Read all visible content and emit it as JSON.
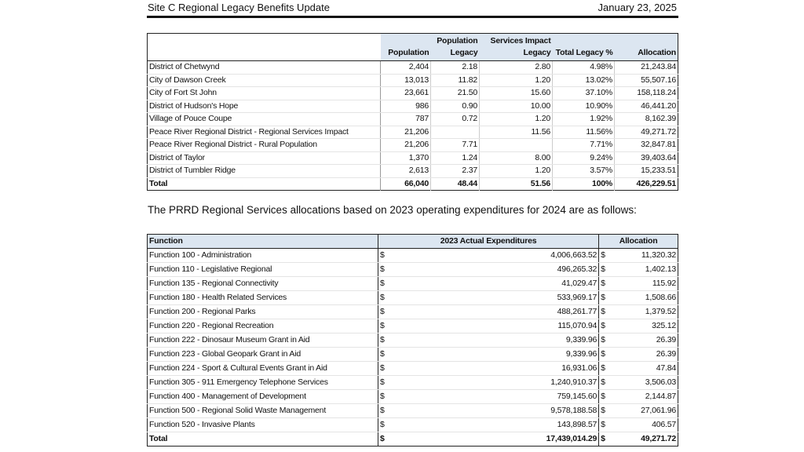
{
  "header": {
    "title": "Site C Regional Legacy Benefits Update",
    "date": "January 23, 2025"
  },
  "legacy_table": {
    "headers": [
      "Population",
      "Population Legacy",
      "Services Impact Legacy",
      "Total Legacy %",
      "Allocation"
    ],
    "rows": [
      [
        "District of Chetwynd",
        "2,404",
        "2.18",
        "2.80",
        "4.98%",
        "21,243.84"
      ],
      [
        "City of Dawson Creek",
        "13,013",
        "11.82",
        "1.20",
        "13.02%",
        "55,507.16"
      ],
      [
        "City of Fort St John",
        "23,661",
        "21.50",
        "15.60",
        "37.10%",
        "158,118.24"
      ],
      [
        "District of Hudson's Hope",
        "986",
        "0.90",
        "10.00",
        "10.90%",
        "46,441.20"
      ],
      [
        "Village of Pouce Coupe",
        "787",
        "0.72",
        "1.20",
        "1.92%",
        "8,162.39"
      ],
      [
        "Peace River Regional District - Regional Services Impact",
        "21,206",
        "",
        "11.56",
        "11.56%",
        "49,271.72"
      ],
      [
        "Peace River Regional District - Rural Population",
        "21,206",
        "7.71",
        "",
        "7.71%",
        "32,847.81"
      ],
      [
        "District of Taylor",
        "1,370",
        "1.24",
        "8.00",
        "9.24%",
        "39,403.64"
      ],
      [
        "District of Tumbler Ridge",
        "2,613",
        "2.37",
        "1.20",
        "3.57%",
        "15,233.51"
      ]
    ],
    "total": [
      "Total",
      "66,040",
      "48.44",
      "51.56",
      "100%",
      "426,229.51"
    ]
  },
  "sentence": "The PRRD Regional Services allocations based on 2023 operating expenditures for 2024 are as follows:",
  "services_table": {
    "headers": [
      "Function",
      "2023 Actual Expenditures",
      "Allocation"
    ],
    "currency": "$",
    "rows": [
      [
        "Function 100 - Administration",
        "4,006,663.52",
        "11,320.32"
      ],
      [
        "Function 110 - Legislative Regional",
        "496,265.32",
        "1,402.13"
      ],
      [
        "Function 135 - Regional Connectivity",
        "41,029.47",
        "115.92"
      ],
      [
        "Function 180 - Health Related Services",
        "533,969.17",
        "1,508.66"
      ],
      [
        "Function 200 - Regional Parks",
        "488,261.77",
        "1,379.52"
      ],
      [
        "Function 220 - Regional Recreation",
        "115,070.94",
        "325.12"
      ],
      [
        "Function 222 - Dinosaur Museum Grant in Aid",
        "9,339.96",
        "26.39"
      ],
      [
        "Function 223 - Global Geopark Grant in Aid",
        "9,339.96",
        "26.39"
      ],
      [
        "Function 224 - Sport & Cultural Events Grant in Aid",
        "16,931.06",
        "47.84"
      ],
      [
        "Function 305 - 911 Emergency Telephone Services",
        "1,240,910.37",
        "3,506.03"
      ],
      [
        "Function 400 - Management of Development",
        "759,145.60",
        "2,144.87"
      ],
      [
        "Function 500 - Regional Solid Waste Management",
        "9,578,188.58",
        "27,061.96"
      ],
      [
        "Function 520 - Invasive Plants",
        "143,898.57",
        "406.57"
      ]
    ],
    "total": [
      "Total",
      "17,439,014.29",
      "49,271.72"
    ]
  }
}
